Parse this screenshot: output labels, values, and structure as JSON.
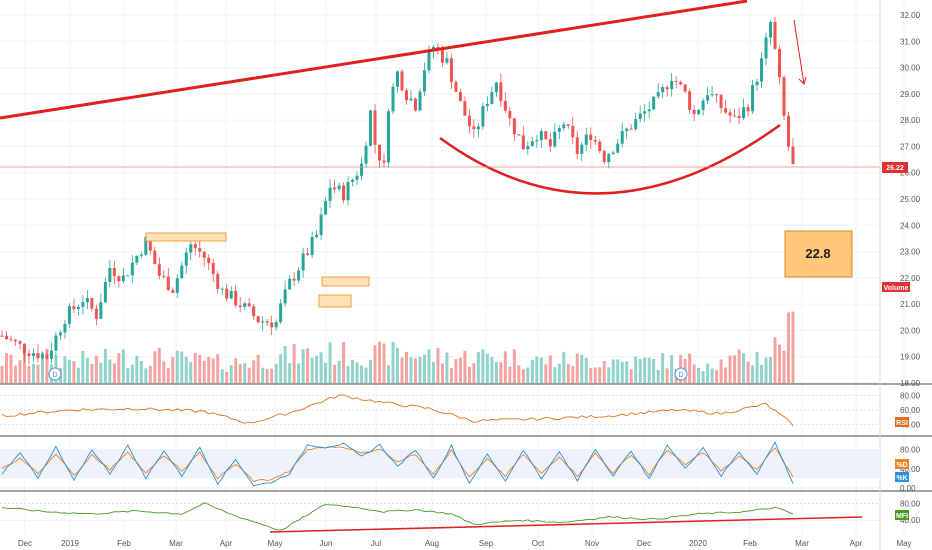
{
  "chart_data": {
    "type": "candlestick",
    "x_labels": [
      "Dec",
      "2019",
      "Feb",
      "Mar",
      "Apr",
      "May",
      "Jun",
      "Jul",
      "Aug",
      "Sep",
      "Oct",
      "Nov",
      "Dec",
      "2020",
      "Feb",
      "Mar",
      "Apr",
      "May"
    ],
    "price_axis": {
      "ticks": [
        "32.00",
        "31.00",
        "30.00",
        "29.00",
        "28.00",
        "27.00",
        "26.00",
        "25.00",
        "24.00",
        "23.00",
        "22.00",
        "21.00",
        "20.00",
        "19.00",
        "18.00"
      ],
      "ylim": [
        18,
        32
      ],
      "last_price": "26.22",
      "volume_label": "Volume"
    },
    "price_path": [
      [
        0,
        19.8
      ],
      [
        5,
        19.3
      ],
      [
        10,
        19.0
      ],
      [
        14,
        20.5
      ],
      [
        18,
        21.2
      ],
      [
        21,
        20.6
      ],
      [
        24,
        22.4
      ],
      [
        27,
        22.0
      ],
      [
        32,
        23.4
      ],
      [
        35,
        22.1
      ],
      [
        38,
        21.6
      ],
      [
        42,
        23.3
      ],
      [
        45,
        22.8
      ],
      [
        49,
        21.5
      ],
      [
        53,
        21.0
      ],
      [
        57,
        20.4
      ],
      [
        61,
        20.3
      ],
      [
        62,
        20.9
      ],
      [
        64,
        21.8
      ],
      [
        67,
        22.7
      ],
      [
        70,
        23.6
      ],
      [
        73,
        25.5
      ],
      [
        76,
        25.2
      ],
      [
        80,
        26.3
      ],
      [
        82,
        28.3
      ],
      [
        83,
        27.1
      ],
      [
        85,
        26.2
      ],
      [
        86,
        28.6
      ],
      [
        88,
        29.8
      ],
      [
        90,
        29.0
      ],
      [
        92,
        28.6
      ],
      [
        94,
        30.0
      ],
      [
        96,
        30.8
      ],
      [
        99,
        30.2
      ],
      [
        102,
        28.6
      ],
      [
        105,
        27.4
      ],
      [
        108,
        28.8
      ],
      [
        110,
        29.5
      ],
      [
        113,
        28.0
      ],
      [
        116,
        27.0
      ],
      [
        119,
        27.5
      ],
      [
        122,
        27.0
      ],
      [
        125,
        27.9
      ],
      [
        128,
        26.8
      ],
      [
        131,
        27.5
      ],
      [
        134,
        26.6
      ],
      [
        137,
        27.2
      ],
      [
        140,
        27.8
      ],
      [
        143,
        28.3
      ],
      [
        146,
        28.8
      ],
      [
        149,
        29.7
      ],
      [
        152,
        29.0
      ],
      [
        154,
        28.2
      ],
      [
        157,
        29.1
      ],
      [
        160,
        28.5
      ],
      [
        163,
        28.0
      ],
      [
        166,
        28.6
      ],
      [
        169,
        30.2
      ],
      [
        171,
        31.7
      ],
      [
        172,
        30.6
      ],
      [
        173,
        29.4
      ],
      [
        174,
        28.1
      ],
      [
        175,
        27.0
      ],
      [
        176,
        26.2
      ]
    ],
    "volume_path": [
      [
        0,
        0.4
      ],
      [
        10,
        0.45
      ],
      [
        20,
        0.4
      ],
      [
        30,
        0.5
      ],
      [
        40,
        0.42
      ],
      [
        50,
        0.35
      ],
      [
        60,
        0.45
      ],
      [
        70,
        0.55
      ],
      [
        80,
        0.5
      ],
      [
        90,
        0.55
      ],
      [
        100,
        0.45
      ],
      [
        110,
        0.5
      ],
      [
        120,
        0.4
      ],
      [
        130,
        0.42
      ],
      [
        140,
        0.38
      ],
      [
        150,
        0.4
      ],
      [
        160,
        0.38
      ],
      [
        170,
        0.5
      ],
      [
        176,
        1.0
      ]
    ],
    "annotations": {
      "target_label": "22.8"
    },
    "indicators": [
      {
        "badge": "RSI",
        "ticks": [
          "80.00",
          "60.00",
          "40.00"
        ],
        "ylim": [
          30,
          90
        ],
        "path": [
          [
            0,
            52
          ],
          [
            15,
            60
          ],
          [
            30,
            62
          ],
          [
            45,
            58
          ],
          [
            55,
            42
          ],
          [
            65,
            58
          ],
          [
            75,
            80
          ],
          [
            85,
            70
          ],
          [
            95,
            62
          ],
          [
            105,
            45
          ],
          [
            120,
            48
          ],
          [
            135,
            52
          ],
          [
            150,
            60
          ],
          [
            160,
            55
          ],
          [
            170,
            68
          ],
          [
            176,
            40
          ]
        ]
      },
      {
        "badge_primary": "%D",
        "badge_secondary": "%K",
        "ticks": [
          "80.00",
          "40.00",
          "0.00"
        ],
        "ylim": [
          0,
          100
        ],
        "k_path": [
          [
            0,
            30
          ],
          [
            4,
            75
          ],
          [
            8,
            20
          ],
          [
            12,
            85
          ],
          [
            16,
            15
          ],
          [
            20,
            80
          ],
          [
            24,
            30
          ],
          [
            28,
            88
          ],
          [
            32,
            20
          ],
          [
            36,
            78
          ],
          [
            40,
            25
          ],
          [
            44,
            85
          ],
          [
            48,
            10
          ],
          [
            52,
            60
          ],
          [
            56,
            5
          ],
          [
            60,
            12
          ],
          [
            64,
            30
          ],
          [
            68,
            90
          ],
          [
            72,
            85
          ],
          [
            76,
            92
          ],
          [
            80,
            65
          ],
          [
            84,
            90
          ],
          [
            88,
            45
          ],
          [
            92,
            80
          ],
          [
            96,
            20
          ],
          [
            100,
            88
          ],
          [
            104,
            10
          ],
          [
            108,
            70
          ],
          [
            112,
            15
          ],
          [
            116,
            80
          ],
          [
            120,
            20
          ],
          [
            124,
            75
          ],
          [
            128,
            15
          ],
          [
            132,
            82
          ],
          [
            136,
            25
          ],
          [
            140,
            78
          ],
          [
            144,
            18
          ],
          [
            148,
            90
          ],
          [
            152,
            40
          ],
          [
            156,
            85
          ],
          [
            160,
            25
          ],
          [
            164,
            75
          ],
          [
            168,
            30
          ],
          [
            172,
            95
          ],
          [
            176,
            10
          ]
        ],
        "d_path": [
          [
            0,
            40
          ],
          [
            4,
            62
          ],
          [
            8,
            30
          ],
          [
            12,
            72
          ],
          [
            16,
            25
          ],
          [
            20,
            70
          ],
          [
            24,
            38
          ],
          [
            28,
            76
          ],
          [
            32,
            30
          ],
          [
            36,
            68
          ],
          [
            40,
            35
          ],
          [
            44,
            74
          ],
          [
            48,
            20
          ],
          [
            52,
            50
          ],
          [
            56,
            15
          ],
          [
            60,
            18
          ],
          [
            64,
            35
          ],
          [
            68,
            80
          ],
          [
            72,
            85
          ],
          [
            76,
            86
          ],
          [
            80,
            72
          ],
          [
            84,
            82
          ],
          [
            88,
            55
          ],
          [
            92,
            70
          ],
          [
            96,
            30
          ],
          [
            100,
            78
          ],
          [
            104,
            22
          ],
          [
            108,
            60
          ],
          [
            112,
            25
          ],
          [
            116,
            70
          ],
          [
            120,
            30
          ],
          [
            124,
            66
          ],
          [
            128,
            25
          ],
          [
            132,
            72
          ],
          [
            136,
            32
          ],
          [
            140,
            70
          ],
          [
            144,
            28
          ],
          [
            148,
            80
          ],
          [
            152,
            48
          ],
          [
            156,
            75
          ],
          [
            160,
            35
          ],
          [
            164,
            66
          ],
          [
            168,
            38
          ],
          [
            172,
            85
          ],
          [
            176,
            22
          ]
        ]
      },
      {
        "badge": "MFI",
        "ticks": [
          "80.00",
          "40.00"
        ],
        "ylim": [
          0,
          100
        ],
        "path": [
          [
            0,
            70
          ],
          [
            10,
            60
          ],
          [
            20,
            55
          ],
          [
            30,
            62
          ],
          [
            40,
            55
          ],
          [
            45,
            80
          ],
          [
            52,
            50
          ],
          [
            58,
            30
          ],
          [
            62,
            15
          ],
          [
            66,
            40
          ],
          [
            72,
            78
          ],
          [
            78,
            72
          ],
          [
            85,
            60
          ],
          [
            92,
            65
          ],
          [
            100,
            55
          ],
          [
            105,
            30
          ],
          [
            115,
            40
          ],
          [
            125,
            35
          ],
          [
            135,
            48
          ],
          [
            145,
            42
          ],
          [
            155,
            55
          ],
          [
            165,
            60
          ],
          [
            172,
            70
          ],
          [
            176,
            55
          ]
        ]
      }
    ]
  }
}
